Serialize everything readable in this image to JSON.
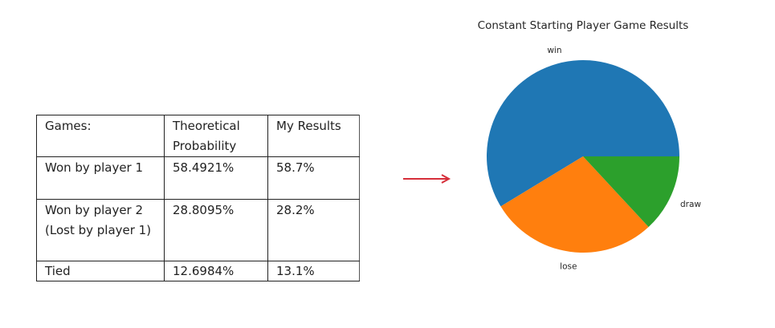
{
  "table": {
    "headers": [
      "Games:",
      "Theoretical Probability",
      "My Results"
    ],
    "rows": [
      [
        "Won by player 1",
        "58.4921%",
        "58.7%"
      ],
      [
        "Won by player 2 (Lost by player 1)",
        "28.8095%",
        "28.2%"
      ],
      [
        "Tied",
        "12.6984%",
        "13.1%"
      ]
    ]
  },
  "arrow": {
    "color": "#d62f3a"
  },
  "chart_data": {
    "type": "pie",
    "title": "Constant Starting Player Game Results",
    "labels": [
      "win",
      "lose",
      "draw"
    ],
    "values": [
      58.7,
      28.2,
      13.1
    ],
    "colors": [
      "#1f77b4",
      "#ff7f0e",
      "#2ca02c"
    ],
    "start_angle_deg": 0,
    "direction": "counterclockwise"
  }
}
